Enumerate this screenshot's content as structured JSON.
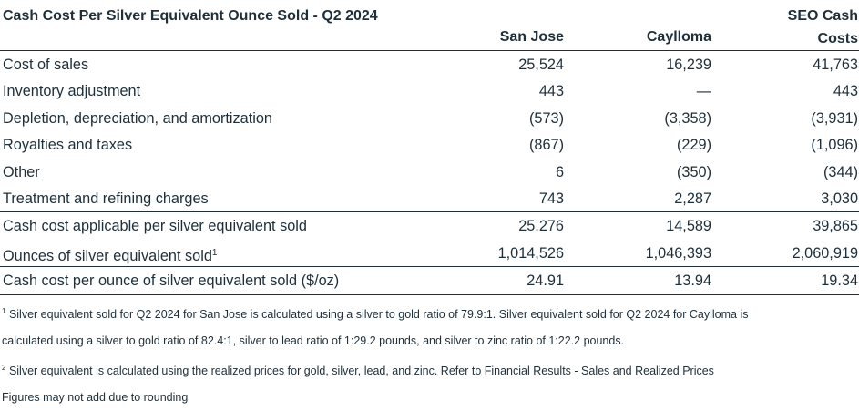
{
  "table": {
    "title": "Cash Cost Per Silver Equivalent Ounce Sold - Q2 2024",
    "columns": [
      "San Jose",
      "Caylloma",
      "SEO Cash Costs"
    ],
    "rows": [
      {
        "label": "Cost of sales",
        "values": [
          "25,524",
          "16,239",
          "41,763"
        ]
      },
      {
        "label": "Inventory adjustment",
        "values": [
          "443",
          "—",
          "443"
        ]
      },
      {
        "label": "Depletion, depreciation, and amortization",
        "values": [
          "(573)",
          "(3,358)",
          "(3,931)"
        ]
      },
      {
        "label": "Royalties and taxes",
        "values": [
          "(867)",
          "(229)",
          "(1,096)"
        ]
      },
      {
        "label": "Other",
        "values": [
          "6",
          "(350)",
          "(344)"
        ]
      },
      {
        "label": "Treatment and refining charges",
        "values": [
          "743",
          "2,287",
          "3,030"
        ]
      },
      {
        "label": "Cash cost applicable per silver equivalent sold",
        "values": [
          "25,276",
          "14,589",
          "39,865"
        ]
      },
      {
        "label": "Ounces of silver equivalent sold",
        "sup": "1",
        "values": [
          "1,014,526",
          "1,046,393",
          "2,060,919"
        ]
      },
      {
        "label": "Cash cost per ounce of silver equivalent sold ($/oz)",
        "values": [
          "24.91",
          "13.94",
          "19.34"
        ]
      }
    ]
  },
  "footnotes": {
    "note1_mark": "1",
    "note1_line1": "Silver equivalent sold for Q2 2024 for San Jose is calculated using a silver to gold ratio of 79.9:1. Silver equivalent sold for Q2 2024 for Caylloma is",
    "note1_line2": "calculated using a silver to gold ratio of 82.4:1, silver to lead ratio of 1:29.2 pounds, and silver to zinc ratio of 1:22.2 pounds.",
    "note2_mark": "2",
    "note2_text": "Silver equivalent is calculated using the realized prices for gold, silver, lead, and zinc. Refer to Financial Results - Sales and Realized Prices",
    "rounding": "Figures may not add due to rounding"
  }
}
